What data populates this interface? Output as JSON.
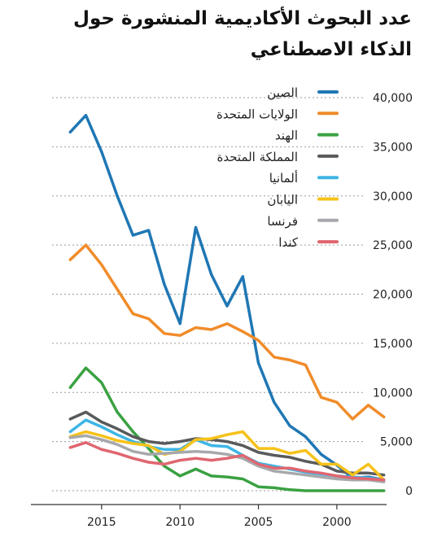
{
  "chart_data": {
    "type": "line",
    "title": "عدد البحوث الأكاديمية المنشورة حول الذكاء الاصطناعي",
    "xlabel": "",
    "ylabel": "",
    "x": [
      2017,
      2016,
      2015,
      2014,
      2013,
      2012,
      2011,
      2010,
      2009,
      2008,
      2007,
      2006,
      2005,
      2004,
      2003,
      2002,
      2001,
      2000,
      1999,
      1998,
      1997
    ],
    "xlim": [
      2018,
      1996
    ],
    "x_ticks": [
      2015,
      2010,
      2005,
      2000
    ],
    "x_tick_labels": [
      "2015",
      "2010",
      "2005",
      "2000"
    ],
    "ylim": [
      0,
      40000
    ],
    "y_ticks": [
      0,
      5000,
      10000,
      15000,
      20000,
      25000,
      30000,
      35000,
      40000
    ],
    "y_tick_labels": [
      "0",
      "5,000",
      "10,000",
      "15,000",
      "20,000",
      "25,000",
      "30,000",
      "35,000",
      "40,000"
    ],
    "grid": "horizontal dashed",
    "legend_position": "top-right",
    "series": [
      {
        "name": "الصين",
        "color": "#1f77b4",
        "values": [
          36500,
          38200,
          34500,
          30000,
          26000,
          26500,
          21000,
          17000,
          26800,
          22000,
          18800,
          21800,
          13000,
          9000,
          6600,
          5500,
          3700,
          2600,
          1300,
          1400,
          1100
        ]
      },
      {
        "name": "الولايات المتحدة",
        "color": "#f08c2a",
        "values": [
          23500,
          25000,
          23000,
          20500,
          18000,
          17500,
          16000,
          15800,
          16600,
          16400,
          17000,
          16200,
          15300,
          13600,
          13300,
          12800,
          9500,
          9000,
          7300,
          8700,
          7500
        ]
      },
      {
        "name": "الهند",
        "color": "#3aa142",
        "values": [
          10500,
          12500,
          11000,
          8000,
          6000,
          4300,
          2500,
          1500,
          2200,
          1500,
          1400,
          1200,
          400,
          300,
          100,
          0,
          0,
          0,
          0,
          0,
          0
        ]
      },
      {
        "name": "المملكة المتحدة",
        "color": "#595a5c",
        "values": [
          7300,
          8000,
          7000,
          6300,
          5500,
          5000,
          4800,
          5000,
          5300,
          5200,
          5000,
          4600,
          3900,
          3600,
          3400,
          3000,
          2700,
          2000,
          1800,
          1800,
          1600
        ]
      },
      {
        "name": "ألمانيا",
        "color": "#3db5e5",
        "values": [
          6000,
          7200,
          6500,
          5700,
          5000,
          4500,
          4200,
          4200,
          5200,
          4600,
          4500,
          3600,
          2800,
          2500,
          2200,
          1900,
          1700,
          1500,
          1400,
          1300,
          1100
        ]
      },
      {
        "name": "اليابان",
        "color": "#f6c21a",
        "values": [
          5500,
          6000,
          5600,
          5100,
          4800,
          4600,
          3700,
          4000,
          5200,
          5300,
          5700,
          6000,
          4300,
          4300,
          3800,
          4100,
          2700,
          2700,
          1600,
          2700,
          1100
        ]
      },
      {
        "name": "فرنسا",
        "color": "#a6a8ab",
        "values": [
          5400,
          5600,
          5200,
          4700,
          4000,
          3700,
          3800,
          3900,
          4000,
          3900,
          3700,
          3300,
          2500,
          2000,
          1800,
          1600,
          1400,
          1200,
          1100,
          1100,
          900
        ]
      },
      {
        "name": "كندا",
        "color": "#e06670",
        "values": [
          4400,
          4900,
          4200,
          3800,
          3300,
          2900,
          2700,
          3100,
          3300,
          3100,
          3300,
          3600,
          2700,
          2300,
          2300,
          2000,
          1800,
          1500,
          1300,
          1200,
          1100
        ]
      }
    ]
  }
}
